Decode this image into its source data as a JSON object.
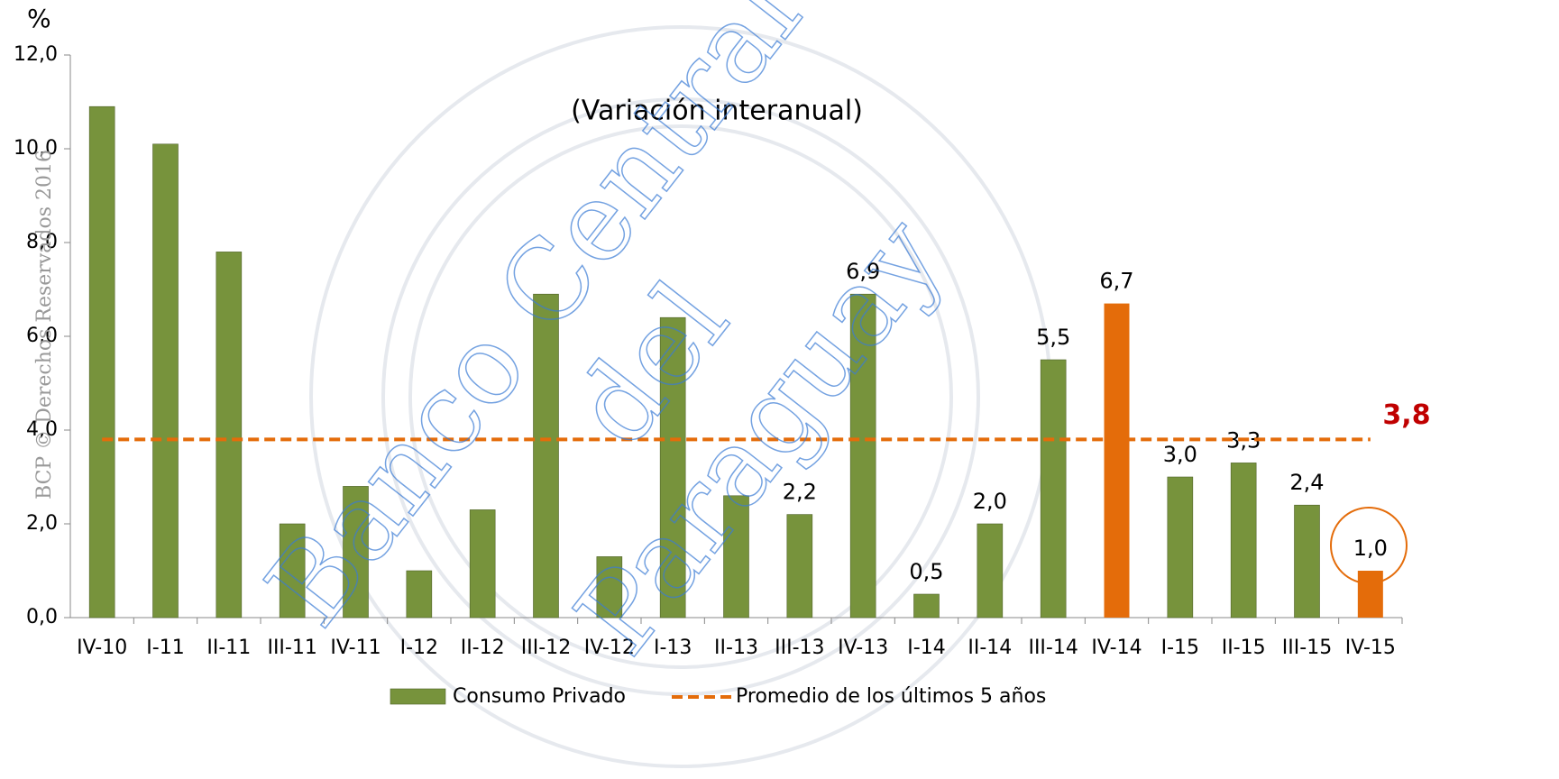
{
  "chart_data": {
    "type": "bar",
    "title": "(Variación interanual)",
    "y_unit": "%",
    "categories": [
      "IV-10",
      "I-11",
      "II-11",
      "III-11",
      "IV-11",
      "I-12",
      "II-12",
      "III-12",
      "IV-12",
      "I-13",
      "II-13",
      "III-13",
      "IV-13",
      "I-14",
      "II-14",
      "III-14",
      "IV-14",
      "I-15",
      "II-15",
      "III-15",
      "IV-15"
    ],
    "series": [
      {
        "name": "Consumo Privado",
        "color": "#77933c",
        "colors": [
          "#77933c",
          "#77933c",
          "#77933c",
          "#77933c",
          "#77933c",
          "#77933c",
          "#77933c",
          "#77933c",
          "#77933c",
          "#77933c",
          "#77933c",
          "#77933c",
          "#77933c",
          "#77933c",
          "#77933c",
          "#77933c",
          "#e46c0a",
          "#77933c",
          "#77933c",
          "#77933c",
          "#e46c0a"
        ],
        "values": [
          10.9,
          10.1,
          7.8,
          2.0,
          2.8,
          1.0,
          2.3,
          6.9,
          1.3,
          6.4,
          2.6,
          2.2,
          6.9,
          0.5,
          2.0,
          5.5,
          6.7,
          3.0,
          3.3,
          2.4,
          1.0
        ],
        "value_labels": [
          null,
          null,
          null,
          null,
          null,
          null,
          null,
          null,
          null,
          null,
          null,
          "2,2",
          "6,9",
          "0,5",
          "2,0",
          "5,5",
          "6,7",
          "3,0",
          "3,3",
          "2,4",
          "1,0"
        ]
      }
    ],
    "average": {
      "name": "Promedio de los últimos 5 años",
      "value": 3.8,
      "value_label": "3,8",
      "color": "#e46c0a",
      "label_color": "#c00000"
    },
    "ylim": [
      0,
      12
    ],
    "yticks": [
      {
        "value": 0,
        "label": "0,0"
      },
      {
        "value": 2,
        "label": "2,0"
      },
      {
        "value": 4,
        "label": "4,0"
      },
      {
        "value": 6,
        "label": "6,0"
      },
      {
        "value": 8,
        "label": "8,0"
      },
      {
        "value": 10,
        "label": "10,0"
      },
      {
        "value": 12,
        "label": "12,0"
      }
    ],
    "grid": false,
    "watermark": {
      "lines": [
        "Banco Central",
        "del",
        "Paraguay"
      ],
      "side": "BCP © Derechos Reservados 2016"
    }
  }
}
